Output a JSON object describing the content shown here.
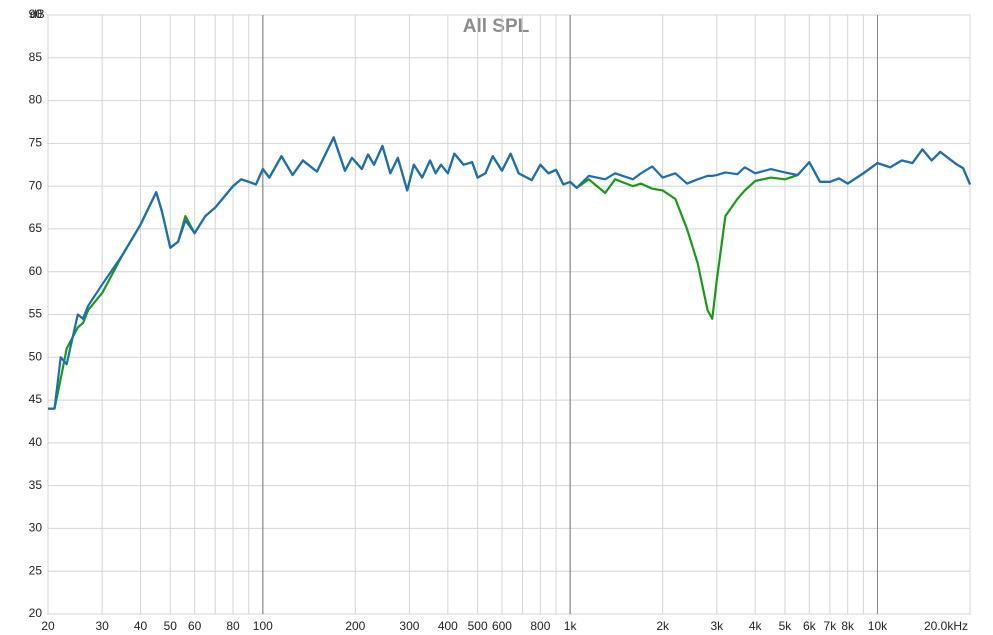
{
  "chart_data": {
    "type": "line",
    "title": "All SPL",
    "y_label": "dB",
    "log_x": true,
    "grid": true,
    "xlim": [
      20,
      20000
    ],
    "ylim": [
      20,
      90
    ],
    "xticks": [
      20,
      30,
      40,
      50,
      60,
      80,
      100,
      200,
      300,
      400,
      500,
      600,
      800,
      {
        "value": 1000,
        "label": "1k"
      },
      {
        "value": 2000,
        "label": "2k"
      },
      {
        "value": 3000,
        "label": "3k"
      },
      {
        "value": 4000,
        "label": "4k"
      },
      {
        "value": 5000,
        "label": "5k"
      },
      {
        "value": 6000,
        "label": "6k"
      },
      {
        "value": 7000,
        "label": "7k"
      },
      {
        "value": 8000,
        "label": "8k"
      },
      {
        "value": 10000,
        "label": "10k"
      },
      {
        "value": 20000,
        "label": "20.0kHz"
      }
    ],
    "xminor_ticks": [
      70,
      90,
      700,
      900,
      9000
    ],
    "major_grid_x": [
      100,
      1000,
      10000
    ],
    "yticks": [
      20,
      25,
      30,
      35,
      40,
      45,
      50,
      55,
      60,
      65,
      70,
      75,
      80,
      85,
      90
    ],
    "x": [
      20,
      21,
      22,
      23,
      25,
      26,
      27,
      30,
      35,
      40,
      45,
      47,
      50,
      53,
      56,
      60,
      65,
      70,
      80,
      85,
      90,
      95,
      100,
      105,
      115,
      125,
      135,
      150,
      170,
      185,
      195,
      210,
      220,
      230,
      245,
      260,
      275,
      295,
      310,
      330,
      350,
      365,
      380,
      400,
      420,
      450,
      480,
      500,
      530,
      560,
      600,
      640,
      680,
      750,
      800,
      850,
      900,
      950,
      1000,
      1050,
      1150,
      1300,
      1400,
      1600,
      1700,
      1850,
      2000,
      2200,
      2400,
      2600,
      2800,
      2900,
      3000,
      3200,
      3500,
      3700,
      4000,
      4500,
      5000,
      5500,
      6000,
      6500,
      7000,
      7500,
      8000,
      9000,
      10000,
      11000,
      12000,
      13000,
      14000,
      15000,
      16000,
      18000,
      19000,
      20000
    ],
    "series": [
      {
        "color": "#1a9a1a",
        "values": [
          44,
          44,
          47.5,
          51,
          53.5,
          54,
          55.5,
          57.5,
          62,
          65.5,
          69.3,
          67,
          62.8,
          63.5,
          66.5,
          64.5,
          66.5,
          67.5,
          70,
          70.8,
          70.5,
          70.2,
          72,
          71,
          73.5,
          71.3,
          73,
          71.7,
          75.7,
          71.8,
          73.3,
          72,
          73.7,
          72.5,
          74.7,
          71.5,
          73.3,
          69.5,
          72.5,
          71,
          73,
          71.5,
          72.5,
          71.5,
          73.8,
          72.5,
          72.8,
          71,
          71.5,
          73.5,
          71.8,
          73.8,
          71.5,
          70.7,
          72.5,
          71.5,
          71.9,
          70.2,
          70.5,
          69.8,
          70.8,
          69.2,
          70.8,
          70,
          70.3,
          69.7,
          69.5,
          68.5,
          65,
          61,
          55.5,
          54.5,
          59,
          66.5,
          68.5,
          69.5,
          70.6,
          71,
          70.8,
          71.3,
          72.8,
          70.5,
          70.5,
          70.9,
          70.3,
          71.5,
          72.7,
          72.2,
          73,
          72.7,
          74.3,
          73,
          74,
          72.6,
          72.1,
          70.2
        ]
      },
      {
        "color": "#1f6fb0",
        "values": [
          44,
          44,
          50,
          49.2,
          55,
          54.5,
          56,
          58.5,
          62,
          65.5,
          69.3,
          67,
          62.8,
          63.5,
          66,
          64.5,
          66.5,
          67.5,
          70,
          70.8,
          70.5,
          70.2,
          72,
          71,
          73.5,
          71.3,
          73,
          71.7,
          75.7,
          71.8,
          73.3,
          72,
          73.7,
          72.5,
          74.7,
          71.5,
          73.3,
          69.5,
          72.5,
          71,
          73,
          71.5,
          72.5,
          71.5,
          73.8,
          72.5,
          72.8,
          71,
          71.5,
          73.5,
          71.8,
          73.8,
          71.5,
          70.7,
          72.5,
          71.5,
          71.9,
          70.2,
          70.5,
          69.8,
          71.2,
          70.8,
          71.5,
          70.8,
          71.5,
          72.3,
          71,
          71.5,
          70.3,
          70.8,
          71.2,
          71.2,
          71.3,
          71.6,
          71.4,
          72.2,
          71.5,
          72,
          71.6,
          71.3,
          72.8,
          70.5,
          70.5,
          70.9,
          70.3,
          71.5,
          72.7,
          72.2,
          73,
          72.7,
          74.3,
          73,
          74,
          72.6,
          72.1,
          70.2
        ]
      }
    ]
  }
}
